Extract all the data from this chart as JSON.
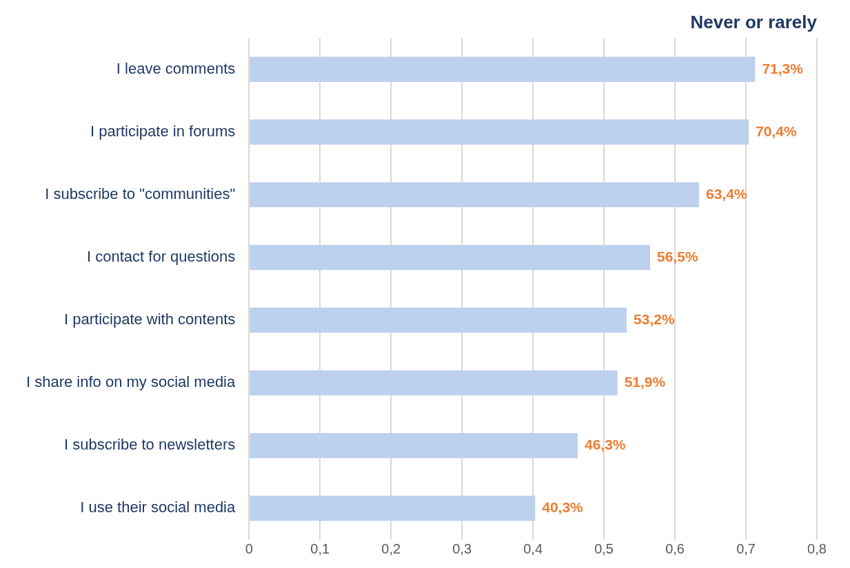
{
  "chart_data": {
    "type": "bar",
    "orientation": "horizontal",
    "title": "Never or rarely",
    "categories": [
      "I leave comments",
      "I participate in forums",
      "I subscribe to \"communities\"",
      "I contact for questions",
      "I participate with contents",
      "I share info on my social media",
      "I subscribe to newsletters",
      "I use their social media"
    ],
    "values": [
      0.713,
      0.704,
      0.634,
      0.565,
      0.532,
      0.519,
      0.463,
      0.403
    ],
    "value_labels": [
      "71,3%",
      "70,4%",
      "63,4%",
      "56,5%",
      "53,2%",
      "51,9%",
      "46,3%",
      "40,3%"
    ],
    "color": "#bdd0ee",
    "xlim": [
      0,
      0.8
    ],
    "xticks": [
      0,
      {
        "value": 0.1,
        "label": "0,1"
      },
      {
        "value": 0.2,
        "label": "0,2"
      },
      {
        "value": 0.3,
        "label": "0,3"
      },
      {
        "value": 0.4,
        "label": "0,4"
      },
      {
        "value": 0.5,
        "label": "0,5"
      },
      {
        "value": 0.6,
        "label": "0,6"
      },
      {
        "value": 0.7,
        "label": "0,7"
      },
      {
        "value": 0.8,
        "label": "0,8"
      }
    ],
    "grid": "x",
    "legend": false
  }
}
